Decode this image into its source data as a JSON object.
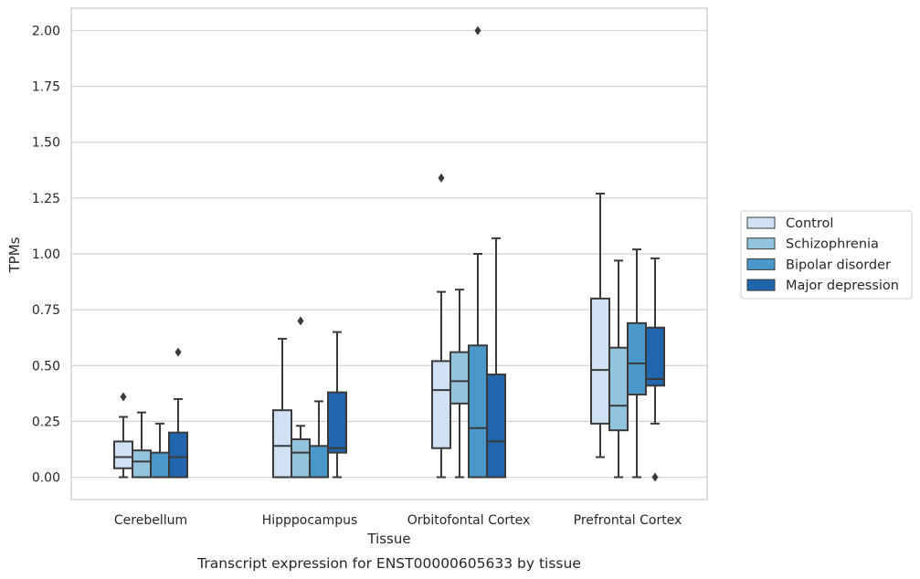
{
  "chart_data": {
    "type": "boxplot",
    "xlabel": "Tissue",
    "ylabel": "TPMs",
    "caption": "Transcript expression for ENST00000605633 by tissue",
    "ylim": [
      -0.1,
      2.1
    ],
    "yticks": [
      "0.00",
      "0.25",
      "0.50",
      "0.75",
      "1.00",
      "1.25",
      "1.50",
      "1.75",
      "2.00"
    ],
    "grid": "horizontal",
    "legend_position": "right",
    "categories": [
      "Cerebellum",
      "Hipppocampus",
      "Orbitofontal Cortex",
      "Prefrontal Cortex"
    ],
    "series": [
      {
        "name": "Control",
        "color": "#cfe1f2",
        "boxes": [
          {
            "whislo": 0.0,
            "q1": 0.04,
            "med": 0.09,
            "q3": 0.16,
            "whishi": 0.27,
            "fliers": [
              0.36
            ]
          },
          {
            "whislo": 0.0,
            "q1": 0.0,
            "med": 0.14,
            "q3": 0.3,
            "whishi": 0.62,
            "fliers": []
          },
          {
            "whislo": 0.0,
            "q1": 0.13,
            "med": 0.39,
            "q3": 0.52,
            "whishi": 0.83,
            "fliers": [
              1.34
            ]
          },
          {
            "whislo": 0.09,
            "q1": 0.24,
            "med": 0.48,
            "q3": 0.8,
            "whishi": 1.27,
            "fliers": []
          }
        ]
      },
      {
        "name": "Schizophrenia",
        "color": "#93c4de",
        "boxes": [
          {
            "whislo": 0.0,
            "q1": 0.0,
            "med": 0.07,
            "q3": 0.12,
            "whishi": 0.29,
            "fliers": []
          },
          {
            "whislo": 0.0,
            "q1": 0.0,
            "med": 0.11,
            "q3": 0.17,
            "whishi": 0.23,
            "fliers": [
              0.7
            ]
          },
          {
            "whislo": 0.0,
            "q1": 0.33,
            "med": 0.43,
            "q3": 0.56,
            "whishi": 0.84,
            "fliers": []
          },
          {
            "whislo": 0.0,
            "q1": 0.21,
            "med": 0.32,
            "q3": 0.58,
            "whishi": 0.97,
            "fliers": []
          }
        ]
      },
      {
        "name": "Bipolar disorder",
        "color": "#4a98c9",
        "boxes": [
          {
            "whislo": 0.0,
            "q1": 0.0,
            "med": 0.0,
            "q3": 0.11,
            "whishi": 0.24,
            "fliers": []
          },
          {
            "whislo": 0.0,
            "q1": 0.0,
            "med": 0.0,
            "q3": 0.14,
            "whishi": 0.34,
            "fliers": []
          },
          {
            "whislo": 0.0,
            "q1": 0.0,
            "med": 0.22,
            "q3": 0.59,
            "whishi": 1.0,
            "fliers": [
              2.0
            ]
          },
          {
            "whislo": 0.0,
            "q1": 0.37,
            "med": 0.51,
            "q3": 0.69,
            "whishi": 1.02,
            "fliers": []
          }
        ]
      },
      {
        "name": "Major depression",
        "color": "#2166ac",
        "boxes": [
          {
            "whislo": 0.0,
            "q1": 0.0,
            "med": 0.09,
            "q3": 0.2,
            "whishi": 0.35,
            "fliers": [
              0.56
            ]
          },
          {
            "whislo": 0.0,
            "q1": 0.11,
            "med": 0.13,
            "q3": 0.38,
            "whishi": 0.65,
            "fliers": []
          },
          {
            "whislo": 0.0,
            "q1": 0.0,
            "med": 0.16,
            "q3": 0.46,
            "whishi": 1.07,
            "fliers": []
          },
          {
            "whislo": 0.24,
            "q1": 0.41,
            "med": 0.44,
            "q3": 0.67,
            "whishi": 0.98,
            "fliers": [
              0.0
            ]
          }
        ]
      }
    ]
  }
}
